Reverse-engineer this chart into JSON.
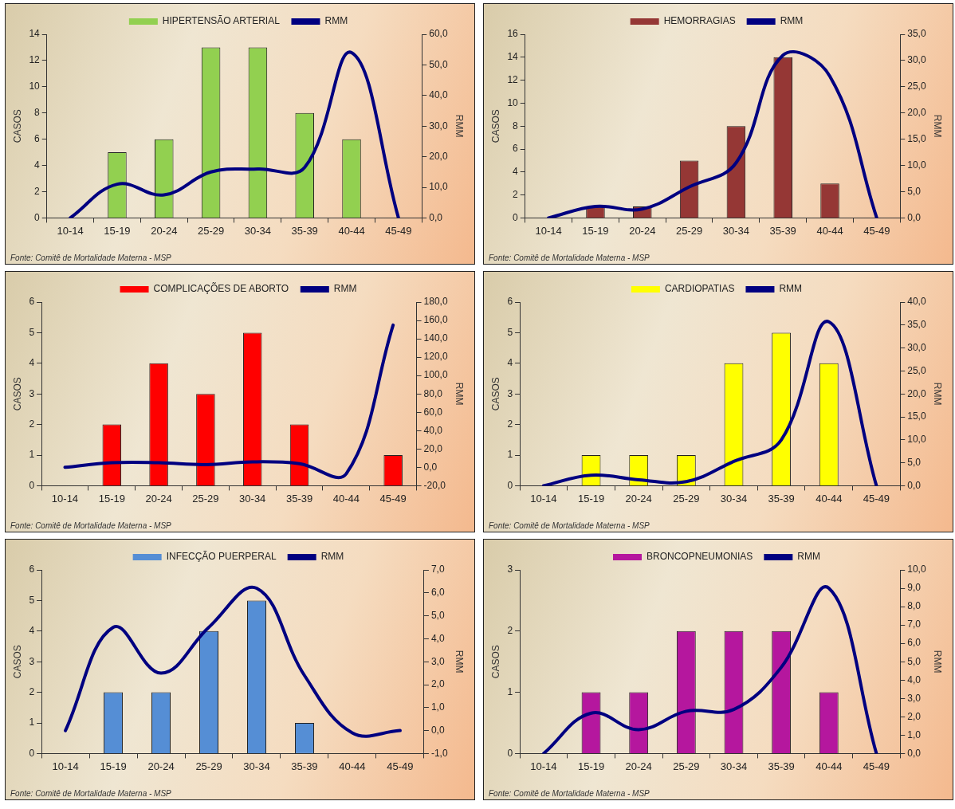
{
  "chart_data": [
    {
      "type": "bar",
      "categories": [
        "10-14",
        "15-19",
        "20-24",
        "25-29",
        "30-34",
        "35-39",
        "40-44",
        "45-49"
      ],
      "ylabel": "CASOS",
      "y2label": "RMM",
      "legend": "top",
      "marker": "none",
      "annotations": [
        "Fonte: Comitê de Mortalidade Materna - MSP"
      ],
      "series": [
        {
          "name": "HIPERTENSÃO ARTERIAL",
          "color": "#92d050",
          "values": [
            0,
            5,
            6,
            13,
            13,
            8,
            6,
            0
          ]
        },
        {
          "name": "RMM",
          "type": "line",
          "axis": "y2",
          "color": "#000080",
          "values": [
            0,
            11,
            7.5,
            15,
            16,
            16.5,
            54,
            0
          ]
        }
      ],
      "ylim": [
        0,
        14
      ],
      "yticks": [
        0,
        2,
        4,
        6,
        8,
        10,
        12,
        14
      ],
      "y2lim": [
        0,
        60
      ],
      "y2ticks": [
        {
          "value": 0,
          "label": "0,0"
        },
        {
          "value": 10,
          "label": "10,0"
        },
        {
          "value": 20,
          "label": "20,0"
        },
        {
          "value": 30,
          "label": "30,0"
        },
        {
          "value": 40,
          "label": "40,0"
        },
        {
          "value": 50,
          "label": "50,0"
        },
        {
          "value": 60,
          "label": "60,0"
        }
      ]
    },
    {
      "type": "bar",
      "categories": [
        "10-14",
        "15-19",
        "20-24",
        "25-29",
        "30-34",
        "35-39",
        "40-44",
        "45-49"
      ],
      "ylabel": "CASOS",
      "y2label": "RMM",
      "legend": "top",
      "marker": "none",
      "annotations": [
        "Fonte: Comitê de Mortalidade Materna - MSP"
      ],
      "series": [
        {
          "name": "HEMORRAGIAS",
          "color": "#953735",
          "values": [
            0,
            1,
            1,
            5,
            8,
            14,
            3,
            0
          ]
        },
        {
          "name": "RMM",
          "type": "line",
          "axis": "y2",
          "color": "#000080",
          "values": [
            0,
            2.2,
            1.7,
            5.9,
            10.5,
            31,
            27,
            0
          ]
        }
      ],
      "ylim": [
        0,
        16
      ],
      "yticks": [
        0,
        2,
        4,
        6,
        8,
        10,
        12,
        14,
        16
      ],
      "y2lim": [
        0,
        35
      ],
      "y2ticks": [
        {
          "value": 0,
          "label": "0,0"
        },
        {
          "value": 5,
          "label": "5,0"
        },
        {
          "value": 10,
          "label": "10,0"
        },
        {
          "value": 15,
          "label": "15,0"
        },
        {
          "value": 20,
          "label": "20,0"
        },
        {
          "value": 25,
          "label": "25,0"
        },
        {
          "value": 30,
          "label": "30,0"
        },
        {
          "value": 35,
          "label": "35,0"
        }
      ]
    },
    {
      "type": "bar",
      "categories": [
        "10-14",
        "15-19",
        "20-24",
        "25-29",
        "30-34",
        "35-39",
        "40-44",
        "45-49"
      ],
      "ylabel": "CASOS",
      "y2label": "RMM",
      "legend": "top",
      "marker": "none",
      "annotations": [
        "Fonte: Comitê de Mortalidade Materna - MSP"
      ],
      "series": [
        {
          "name": "COMPLICAÇÕES DE ABORTO",
          "color": "#ff0000",
          "values": [
            0,
            2,
            4,
            3,
            5,
            2,
            0,
            1
          ]
        },
        {
          "name": "RMM",
          "type": "line",
          "axis": "y2",
          "color": "#000080",
          "values": [
            0,
            5,
            5,
            3,
            6,
            4,
            -7,
            155
          ]
        }
      ],
      "ylim": [
        0,
        6
      ],
      "yticks": [
        0,
        1,
        2,
        3,
        4,
        5,
        6
      ],
      "y2lim": [
        -20,
        180
      ],
      "y2ticks": [
        {
          "value": -20,
          "label": "-20,0"
        },
        {
          "value": 0,
          "label": "0,0"
        },
        {
          "value": 20,
          "label": "20,0"
        },
        {
          "value": 40,
          "label": "40,0"
        },
        {
          "value": 60,
          "label": "60,0"
        },
        {
          "value": 80,
          "label": "80,0"
        },
        {
          "value": 100,
          "label": "100,0"
        },
        {
          "value": 120,
          "label": "120,0"
        },
        {
          "value": 140,
          "label": "140,0"
        },
        {
          "value": 160,
          "label": "160,0"
        },
        {
          "value": 180,
          "label": "180,0"
        }
      ]
    },
    {
      "type": "bar",
      "categories": [
        "10-14",
        "15-19",
        "20-24",
        "25-29",
        "30-34",
        "35-39",
        "40-44",
        "45-49"
      ],
      "ylabel": "CASOS",
      "y2label": "RMM",
      "legend": "top",
      "marker": "none",
      "annotations": [
        "Fonte: Comitê de Mortalidade Materna - MSP"
      ],
      "series": [
        {
          "name": "CARDIOPATIAS",
          "color": "#ffff00",
          "values": [
            0,
            1,
            1,
            1,
            4,
            5,
            4,
            0
          ]
        },
        {
          "name": "RMM",
          "type": "line",
          "axis": "y2",
          "color": "#000080",
          "values": [
            0,
            2.3,
            1.3,
            0.9,
            5.3,
            10,
            35.7,
            0
          ]
        }
      ],
      "ylim": [
        0,
        6
      ],
      "yticks": [
        0,
        1,
        2,
        3,
        4,
        5,
        6
      ],
      "y2lim": [
        0,
        40
      ],
      "y2ticks": [
        {
          "value": 0,
          "label": "0,0"
        },
        {
          "value": 5,
          "label": "5,0"
        },
        {
          "value": 10,
          "label": "10,0"
        },
        {
          "value": 15,
          "label": "15,0"
        },
        {
          "value": 20,
          "label": "20,0"
        },
        {
          "value": 25,
          "label": "25,0"
        },
        {
          "value": 30,
          "label": "30,0"
        },
        {
          "value": 35,
          "label": "35,0"
        },
        {
          "value": 40,
          "label": "40,0"
        }
      ]
    },
    {
      "type": "bar",
      "categories": [
        "10-14",
        "15-19",
        "20-24",
        "25-29",
        "30-34",
        "35-39",
        "40-44",
        "45-49"
      ],
      "ylabel": "CASOS",
      "y2label": "RMM",
      "legend": "top",
      "marker": "none",
      "annotations": [
        "Fonte: Comitê de Mortalidade Materna - MSP"
      ],
      "series": [
        {
          "name": "INFECÇÃO PUERPERAL",
          "color": "#558ed5",
          "values": [
            0,
            2,
            2,
            4,
            5,
            1,
            0,
            0
          ]
        },
        {
          "name": "RMM",
          "type": "line",
          "axis": "y2",
          "color": "#000080",
          "values": [
            0,
            4.5,
            2.5,
            4.5,
            6.2,
            2.4,
            -0.1,
            0
          ]
        }
      ],
      "ylim": [
        0,
        6
      ],
      "yticks": [
        0,
        1,
        2,
        3,
        4,
        5,
        6
      ],
      "y2lim": [
        -1,
        7
      ],
      "y2ticks": [
        {
          "value": -1,
          "label": "-1,0"
        },
        {
          "value": 0,
          "label": "0,0"
        },
        {
          "value": 1,
          "label": "1,0"
        },
        {
          "value": 2,
          "label": "2,0"
        },
        {
          "value": 3,
          "label": "3,0"
        },
        {
          "value": 4,
          "label": "4,0"
        },
        {
          "value": 5,
          "label": "5,0"
        },
        {
          "value": 6,
          "label": "6,0"
        },
        {
          "value": 7,
          "label": "7,0"
        }
      ]
    },
    {
      "type": "bar",
      "categories": [
        "10-14",
        "15-19",
        "20-24",
        "25-29",
        "30-34",
        "35-39",
        "40-44",
        "45-49"
      ],
      "ylabel": "CASOS",
      "y2label": "RMM",
      "legend": "top",
      "marker": "none",
      "annotations": [
        "Fonte: Comitê de Mortalidade Materna - MSP"
      ],
      "series": [
        {
          "name": "BRONCOPNEUMONIAS",
          "color": "#b5179e",
          "values": [
            0,
            1,
            1,
            2,
            2,
            2,
            1,
            0
          ]
        },
        {
          "name": "RMM",
          "type": "line",
          "axis": "y2",
          "color": "#000080",
          "values": [
            0,
            2.2,
            1.3,
            2.3,
            2.4,
            4.7,
            9,
            0
          ]
        }
      ],
      "ylim": [
        0,
        3
      ],
      "yticks": [
        0,
        1,
        2,
        3
      ],
      "y2lim": [
        0,
        10
      ],
      "y2ticks": [
        {
          "value": 0,
          "label": "0,0"
        },
        {
          "value": 1,
          "label": "1,0"
        },
        {
          "value": 2,
          "label": "2,0"
        },
        {
          "value": 3,
          "label": "3,0"
        },
        {
          "value": 4,
          "label": "4,0"
        },
        {
          "value": 5,
          "label": "5,0"
        },
        {
          "value": 6,
          "label": "6,0"
        },
        {
          "value": 7,
          "label": "7,0"
        },
        {
          "value": 8,
          "label": "8,0"
        },
        {
          "value": 9,
          "label": "9,0"
        },
        {
          "value": 10,
          "label": "10,0"
        }
      ]
    }
  ]
}
